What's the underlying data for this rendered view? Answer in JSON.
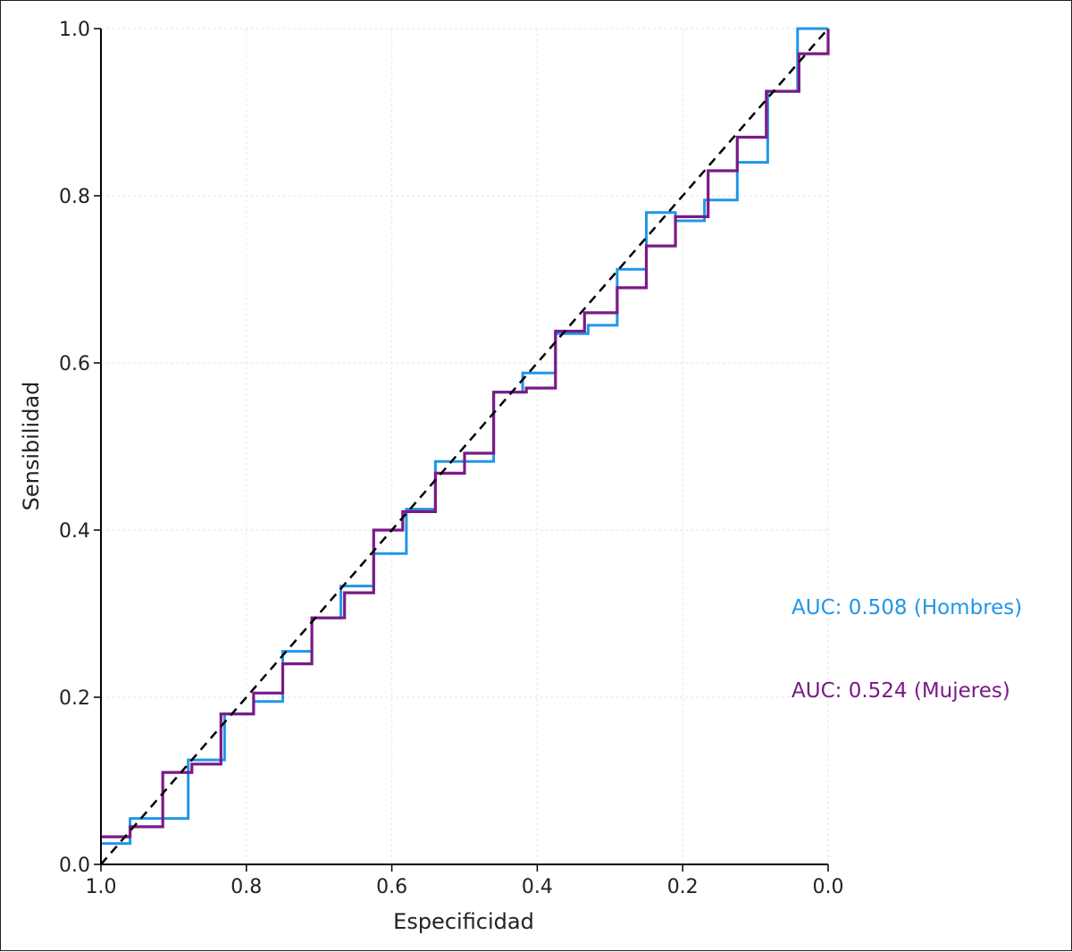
{
  "chart_data": {
    "type": "line",
    "title": "",
    "xlabel": "Especificidad",
    "ylabel": "Sensibilidad",
    "xlim": [
      1.0,
      0.0
    ],
    "ylim": [
      0.0,
      1.0
    ],
    "x_reversed": true,
    "grid": true,
    "xticks": [
      1.0,
      0.8,
      0.6,
      0.4,
      0.2,
      0.0
    ],
    "xtick_labels": [
      "1.0",
      "0.8",
      "0.6",
      "0.4",
      "0.2",
      "0.0"
    ],
    "yticks": [
      0.0,
      0.2,
      0.4,
      0.6,
      0.8,
      1.0
    ],
    "ytick_labels": [
      "0.0",
      "0.2",
      "0.4",
      "0.6",
      "0.8",
      "1.0"
    ],
    "reference_line": {
      "style": "dashed",
      "color": "#000000",
      "points": [
        [
          1.0,
          0.0
        ],
        [
          0.0,
          1.0
        ]
      ]
    },
    "series": [
      {
        "color": "#2196E8",
        "specificity": [
          1.0,
          0.96,
          0.96,
          0.88,
          0.88,
          0.83,
          0.83,
          0.79,
          0.79,
          0.75,
          0.75,
          0.71,
          0.71,
          0.67,
          0.67,
          0.625,
          0.625,
          0.58,
          0.58,
          0.54,
          0.54,
          0.46,
          0.46,
          0.42,
          0.42,
          0.375,
          0.375,
          0.33,
          0.33,
          0.29,
          0.29,
          0.25,
          0.25,
          0.21,
          0.21,
          0.17,
          0.17,
          0.125,
          0.125,
          0.083,
          0.083,
          0.042,
          0.042,
          0.0
        ],
        "sensitivity": [
          0.025,
          0.025,
          0.055,
          0.055,
          0.125,
          0.125,
          0.18,
          0.18,
          0.195,
          0.195,
          0.255,
          0.255,
          0.295,
          0.295,
          0.333,
          0.333,
          0.372,
          0.372,
          0.425,
          0.425,
          0.482,
          0.482,
          0.565,
          0.565,
          0.588,
          0.588,
          0.635,
          0.635,
          0.645,
          0.645,
          0.712,
          0.712,
          0.78,
          0.78,
          0.77,
          0.77,
          0.795,
          0.795,
          0.84,
          0.84,
          0.925,
          0.925,
          1.0,
          1.0
        ]
      },
      {
        "color": "#7B1A86",
        "specificity": [
          1.0,
          0.96,
          0.96,
          0.915,
          0.915,
          0.875,
          0.875,
          0.835,
          0.835,
          0.79,
          0.79,
          0.75,
          0.75,
          0.71,
          0.71,
          0.665,
          0.665,
          0.625,
          0.625,
          0.585,
          0.585,
          0.54,
          0.54,
          0.5,
          0.5,
          0.46,
          0.46,
          0.415,
          0.415,
          0.375,
          0.375,
          0.335,
          0.335,
          0.29,
          0.29,
          0.25,
          0.25,
          0.21,
          0.21,
          0.165,
          0.165,
          0.125,
          0.125,
          0.085,
          0.085,
          0.04,
          0.04,
          0.0,
          0.0
        ],
        "sensitivity": [
          0.033,
          0.033,
          0.045,
          0.045,
          0.11,
          0.11,
          0.12,
          0.12,
          0.18,
          0.18,
          0.205,
          0.205,
          0.24,
          0.24,
          0.295,
          0.295,
          0.325,
          0.325,
          0.4,
          0.4,
          0.422,
          0.422,
          0.468,
          0.468,
          0.492,
          0.492,
          0.565,
          0.565,
          0.57,
          0.57,
          0.638,
          0.638,
          0.66,
          0.66,
          0.69,
          0.69,
          0.74,
          0.74,
          0.775,
          0.775,
          0.83,
          0.83,
          0.87,
          0.87,
          0.925,
          0.925,
          0.97,
          0.97,
          1.0
        ]
      }
    ],
    "annotations": [
      {
        "text": "AUC: 0.508 (Hombres)",
        "color": "#2196E8"
      },
      {
        "text": "AUC: 0.524 (Mujeres)",
        "color": "#7B1A86"
      }
    ]
  }
}
